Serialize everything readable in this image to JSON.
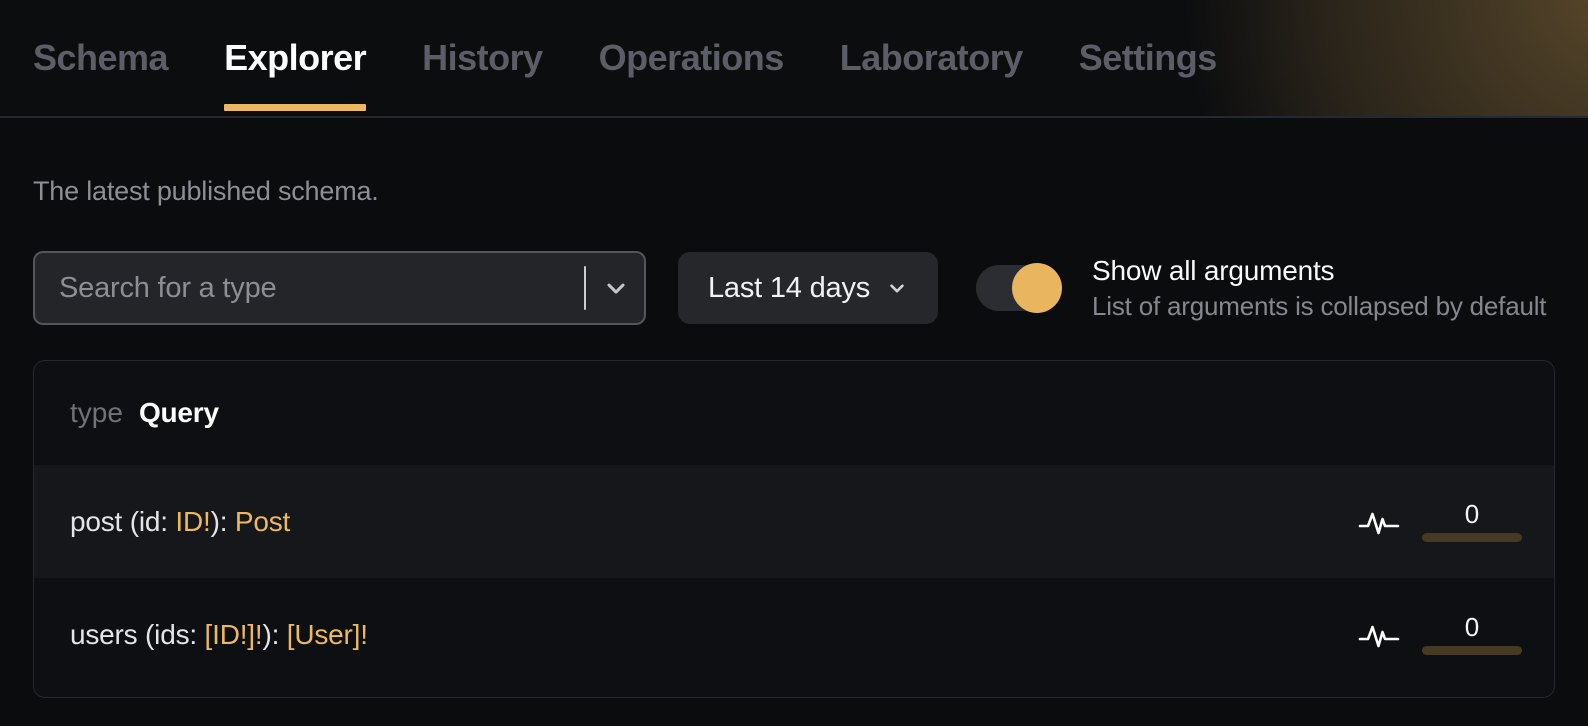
{
  "nav": {
    "tabs": [
      {
        "label": "Schema",
        "active": false
      },
      {
        "label": "Explorer",
        "active": true
      },
      {
        "label": "History",
        "active": false
      },
      {
        "label": "Operations",
        "active": false
      },
      {
        "label": "Laboratory",
        "active": false
      },
      {
        "label": "Settings",
        "active": false
      }
    ]
  },
  "page": {
    "subtitle": "The latest published schema."
  },
  "controls": {
    "search": {
      "placeholder": "Search for a type"
    },
    "period": {
      "label": "Last 14 days"
    },
    "arguments_toggle": {
      "state": "on",
      "title": "Show all arguments",
      "description": "List of arguments is collapsed by default"
    }
  },
  "schema_card": {
    "kind_label": "type",
    "type_name": "Query",
    "fields": [
      {
        "signature": "post (id: ID!): Post",
        "segments": [
          {
            "text": "post (id: ",
            "style": "text"
          },
          {
            "text": "ID!",
            "style": "type"
          },
          {
            "text": "): ",
            "style": "text"
          },
          {
            "text": "Post",
            "style": "type"
          }
        ],
        "usage_count": "0"
      },
      {
        "signature": "users (ids: [ID!]!): [User]!",
        "segments": [
          {
            "text": "users (ids: ",
            "style": "text"
          },
          {
            "text": "[ID!]!",
            "style": "type"
          },
          {
            "text": "): ",
            "style": "text"
          },
          {
            "text": "[User]!",
            "style": "type"
          }
        ],
        "usage_count": "0"
      }
    ]
  },
  "colors": {
    "accent_gold": "#ecb860",
    "type_gold": "#edb95e",
    "toggle_knob": "#eab55f",
    "usage_bar": "#463a22",
    "inactive_tab": "#5b5e66",
    "muted_text": "#8c8f95",
    "page_background": "#0b0c0e",
    "card_background": "#0e0f12",
    "row_background": "#15171a"
  }
}
